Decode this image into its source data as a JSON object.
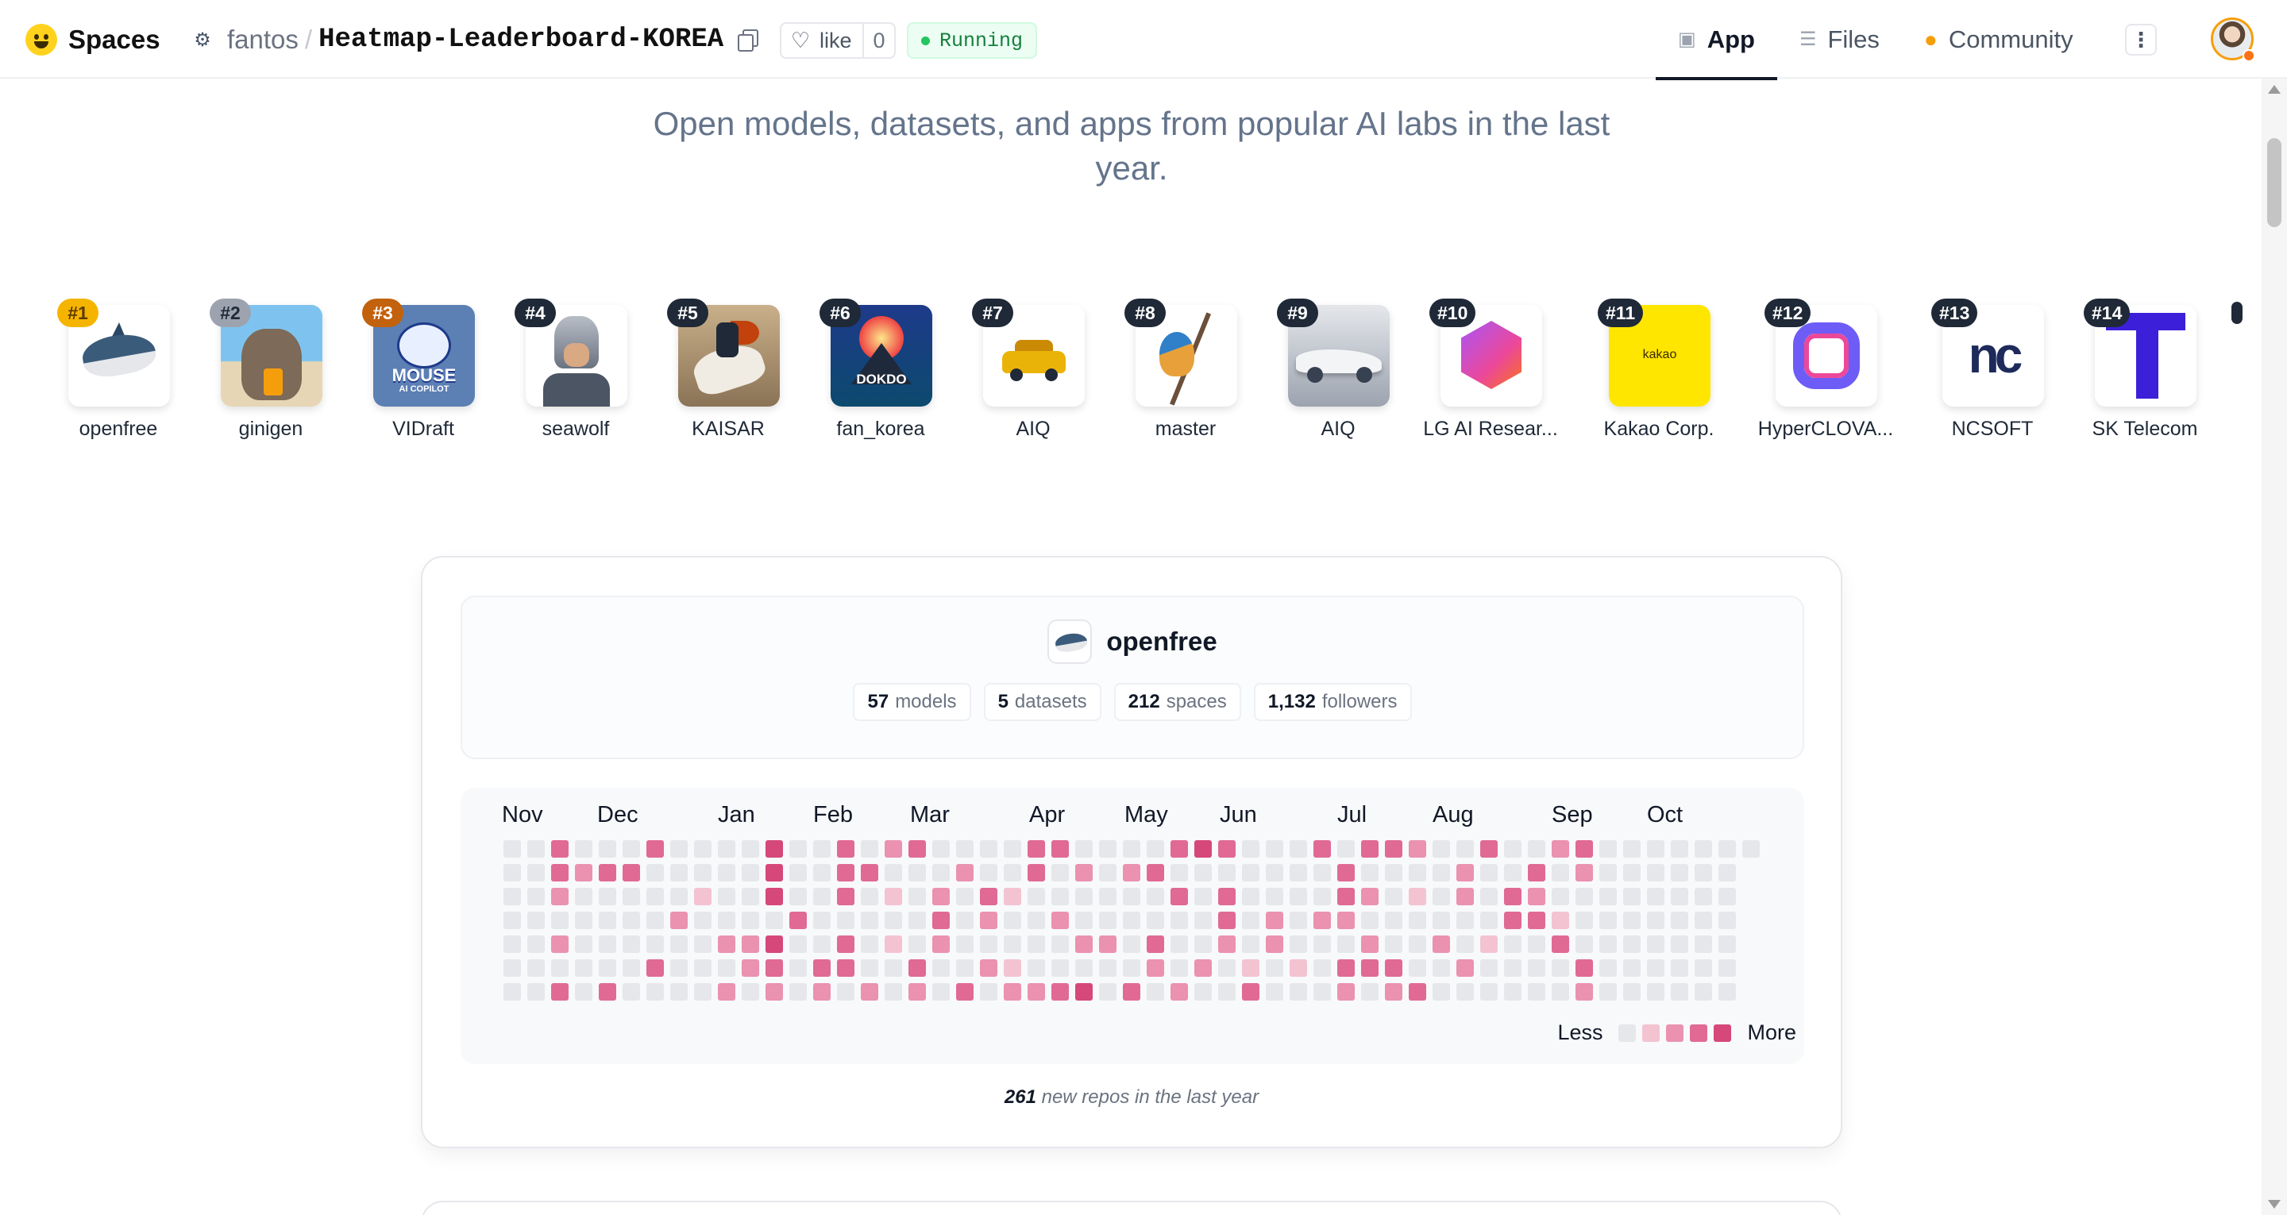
{
  "header": {
    "brand": "Spaces",
    "owner": "fantos",
    "repo": "Heatmap-Leaderboard-KOREA",
    "like_label": "like",
    "like_count": "0",
    "status": "Running",
    "tabs": [
      {
        "label": "App",
        "icon": "cube-icon",
        "active": true
      },
      {
        "label": "Files",
        "icon": "files-icon",
        "active": false
      },
      {
        "label": "Community",
        "icon": "community-icon",
        "active": false
      }
    ]
  },
  "subtitle": "Open models, datasets, and apps from popular AI labs in the last year.",
  "leaderboard": [
    {
      "rank": "#1",
      "name": "openfree"
    },
    {
      "rank": "#2",
      "name": "ginigen"
    },
    {
      "rank": "#3",
      "name": "VIDraft"
    },
    {
      "rank": "#4",
      "name": "seawolf"
    },
    {
      "rank": "#5",
      "name": "KAISAR"
    },
    {
      "rank": "#6",
      "name": "fan_korea"
    },
    {
      "rank": "#7",
      "name": "AIQ"
    },
    {
      "rank": "#8",
      "name": "master"
    },
    {
      "rank": "#9",
      "name": "AIQ"
    },
    {
      "rank": "#10",
      "name": "LG AI Resear..."
    },
    {
      "rank": "#11",
      "name": "Kakao Corp."
    },
    {
      "rank": "#12",
      "name": "HyperCLOVA..."
    },
    {
      "rank": "#13",
      "name": "NCSOFT"
    },
    {
      "rank": "#14",
      "name": "SK Telecom"
    }
  ],
  "tile_text": {
    "mouse": "MOUSE",
    "mouse_sub": "AI COPILOT",
    "dokdo": "DOKDO",
    "kakao": "kakao",
    "ncsoft": "nc"
  },
  "profile": {
    "name": "openfree",
    "stats": [
      {
        "value": "57",
        "label": "models"
      },
      {
        "value": "5",
        "label": "datasets"
      },
      {
        "value": "212",
        "label": "spaces"
      },
      {
        "value": "1,132",
        "label": "followers"
      }
    ]
  },
  "heatmap": {
    "months": [
      "Nov",
      "Dec",
      "Jan",
      "Feb",
      "Mar",
      "Apr",
      "May",
      "Jun",
      "Jul",
      "Aug",
      "Sep",
      "Oct"
    ],
    "legend_less": "Less",
    "legend_more": "More",
    "colors": [
      "#e5e7eb",
      "#f3c3d1",
      "#ea92b0",
      "#e06a94",
      "#d6487a"
    ],
    "weeks": 53,
    "active": [
      [
        2,
        0,
        3
      ],
      [
        2,
        1,
        3
      ],
      [
        2,
        6,
        3
      ],
      [
        2,
        2,
        2
      ],
      [
        2,
        4,
        2
      ],
      [
        3,
        1,
        2
      ],
      [
        4,
        1,
        3
      ],
      [
        4,
        6,
        3
      ],
      [
        5,
        1,
        3
      ],
      [
        6,
        0,
        3
      ],
      [
        6,
        5,
        3
      ],
      [
        7,
        3,
        2
      ],
      [
        8,
        2,
        1
      ],
      [
        9,
        4,
        2
      ],
      [
        9,
        6,
        2
      ],
      [
        10,
        4,
        2
      ],
      [
        10,
        5,
        2
      ],
      [
        11,
        5,
        3
      ],
      [
        11,
        6,
        2
      ],
      [
        11,
        0,
        4
      ],
      [
        11,
        1,
        4
      ],
      [
        11,
        2,
        4
      ],
      [
        11,
        4,
        4
      ],
      [
        12,
        3,
        3
      ],
      [
        13,
        5,
        3
      ],
      [
        13,
        6,
        2
      ],
      [
        14,
        0,
        3
      ],
      [
        14,
        1,
        3
      ],
      [
        14,
        2,
        3
      ],
      [
        14,
        4,
        3
      ],
      [
        14,
        5,
        3
      ],
      [
        15,
        1,
        3
      ],
      [
        15,
        6,
        2
      ],
      [
        16,
        0,
        2
      ],
      [
        16,
        2,
        1
      ],
      [
        16,
        4,
        1
      ],
      [
        17,
        0,
        3
      ],
      [
        17,
        5,
        3
      ],
      [
        17,
        6,
        2
      ],
      [
        18,
        3,
        3
      ],
      [
        18,
        4,
        2
      ],
      [
        18,
        2,
        2
      ],
      [
        19,
        1,
        2
      ],
      [
        19,
        6,
        3
      ],
      [
        20,
        2,
        3
      ],
      [
        20,
        3,
        2
      ],
      [
        20,
        5,
        2
      ],
      [
        21,
        5,
        1
      ],
      [
        21,
        6,
        2
      ],
      [
        21,
        2,
        1
      ],
      [
        22,
        0,
        3
      ],
      [
        22,
        1,
        3
      ],
      [
        22,
        6,
        2
      ],
      [
        23,
        0,
        3
      ],
      [
        23,
        3,
        2
      ],
      [
        23,
        6,
        3
      ],
      [
        24,
        1,
        2
      ],
      [
        24,
        4,
        2
      ],
      [
        24,
        6,
        4
      ],
      [
        25,
        4,
        2
      ],
      [
        26,
        1,
        2
      ],
      [
        26,
        6,
        3
      ],
      [
        27,
        4,
        3
      ],
      [
        27,
        5,
        2
      ],
      [
        27,
        1,
        3
      ],
      [
        28,
        0,
        3
      ],
      [
        28,
        2,
        3
      ],
      [
        28,
        6,
        2
      ],
      [
        29,
        0,
        4
      ],
      [
        29,
        5,
        2
      ],
      [
        30,
        0,
        3
      ],
      [
        30,
        2,
        3
      ],
      [
        30,
        3,
        3
      ],
      [
        30,
        4,
        2
      ],
      [
        31,
        5,
        1
      ],
      [
        31,
        6,
        3
      ],
      [
        32,
        3,
        2
      ],
      [
        32,
        4,
        1
      ],
      [
        32,
        4,
        2
      ],
      [
        33,
        5,
        1
      ],
      [
        34,
        3,
        2
      ],
      [
        34,
        0,
        3
      ],
      [
        35,
        5,
        3
      ],
      [
        35,
        1,
        3
      ],
      [
        35,
        2,
        3
      ],
      [
        35,
        3,
        2
      ],
      [
        35,
        6,
        2
      ],
      [
        36,
        0,
        3
      ],
      [
        36,
        5,
        3
      ],
      [
        36,
        2,
        2
      ],
      [
        36,
        4,
        2
      ],
      [
        37,
        0,
        3
      ],
      [
        37,
        5,
        3
      ],
      [
        37,
        6,
        2
      ],
      [
        38,
        0,
        2
      ],
      [
        38,
        2,
        1
      ],
      [
        38,
        6,
        3
      ],
      [
        39,
        4,
        2
      ],
      [
        40,
        1,
        2
      ],
      [
        40,
        2,
        2
      ],
      [
        40,
        5,
        2
      ],
      [
        41,
        0,
        3
      ],
      [
        41,
        4,
        1
      ],
      [
        42,
        2,
        3
      ],
      [
        42,
        3,
        3
      ],
      [
        43,
        1,
        3
      ],
      [
        43,
        3,
        3
      ],
      [
        43,
        2,
        2
      ],
      [
        44,
        0,
        2
      ],
      [
        44,
        4,
        3
      ],
      [
        44,
        3,
        1
      ],
      [
        45,
        0,
        3
      ],
      [
        45,
        5,
        3
      ],
      [
        45,
        1,
        2
      ],
      [
        45,
        6,
        2
      ]
    ],
    "summary_count": "261",
    "summary_text": "new repos in the last year"
  }
}
